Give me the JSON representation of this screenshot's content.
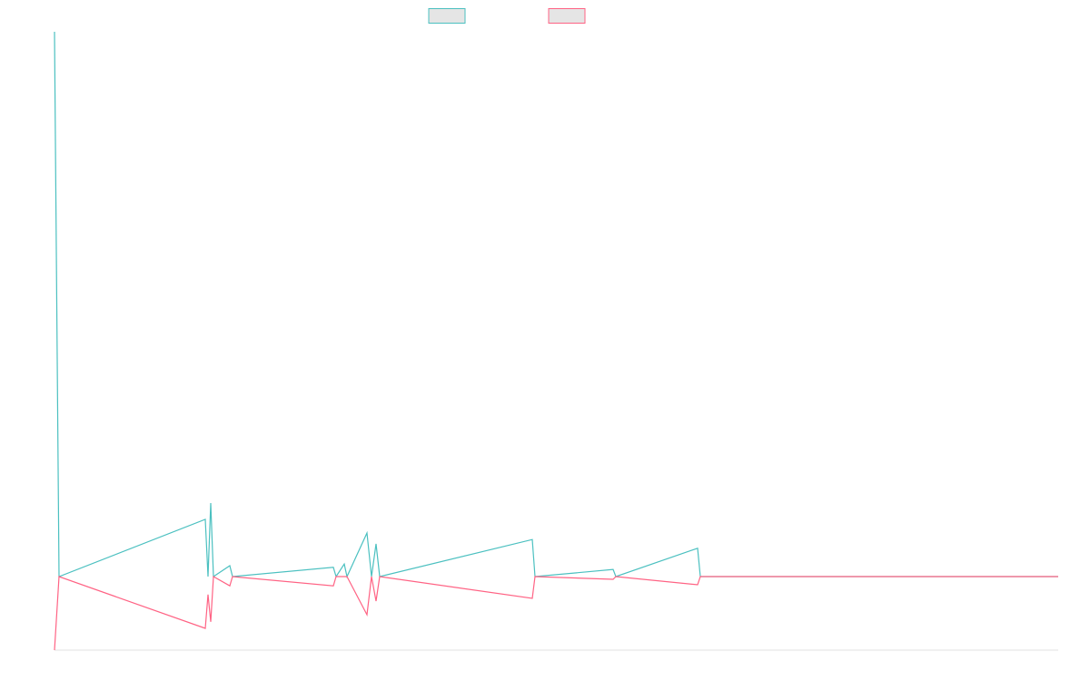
{
  "chart_data": {
    "type": "line",
    "x": [
      0,
      5,
      166,
      169,
      172,
      175,
      193,
      196,
      307,
      310,
      319,
      322,
      344,
      349,
      354,
      358,
      526,
      529,
      615,
      618,
      708,
      711,
      1105
    ],
    "xlim": [
      0,
      1105
    ],
    "ylim": [
      -13.5,
      100
    ],
    "series": [
      {
        "color": "#4bc0c0",
        "values": [
          100,
          0,
          10.5,
          0,
          13.5,
          0,
          2,
          0,
          1.7,
          0,
          2.3,
          0,
          8,
          0,
          6,
          0,
          6.8,
          0,
          1.3,
          0,
          5.2,
          0,
          0
        ]
      },
      {
        "color": "#ff6384",
        "values": [
          -13.5,
          0,
          -9.5,
          -3.3,
          -8.3,
          0,
          -1.7,
          0,
          -1.7,
          0,
          0,
          0,
          -7,
          0,
          -4.5,
          0,
          -4,
          0,
          -0.5,
          0,
          -1.5,
          0,
          0
        ]
      }
    ]
  }
}
